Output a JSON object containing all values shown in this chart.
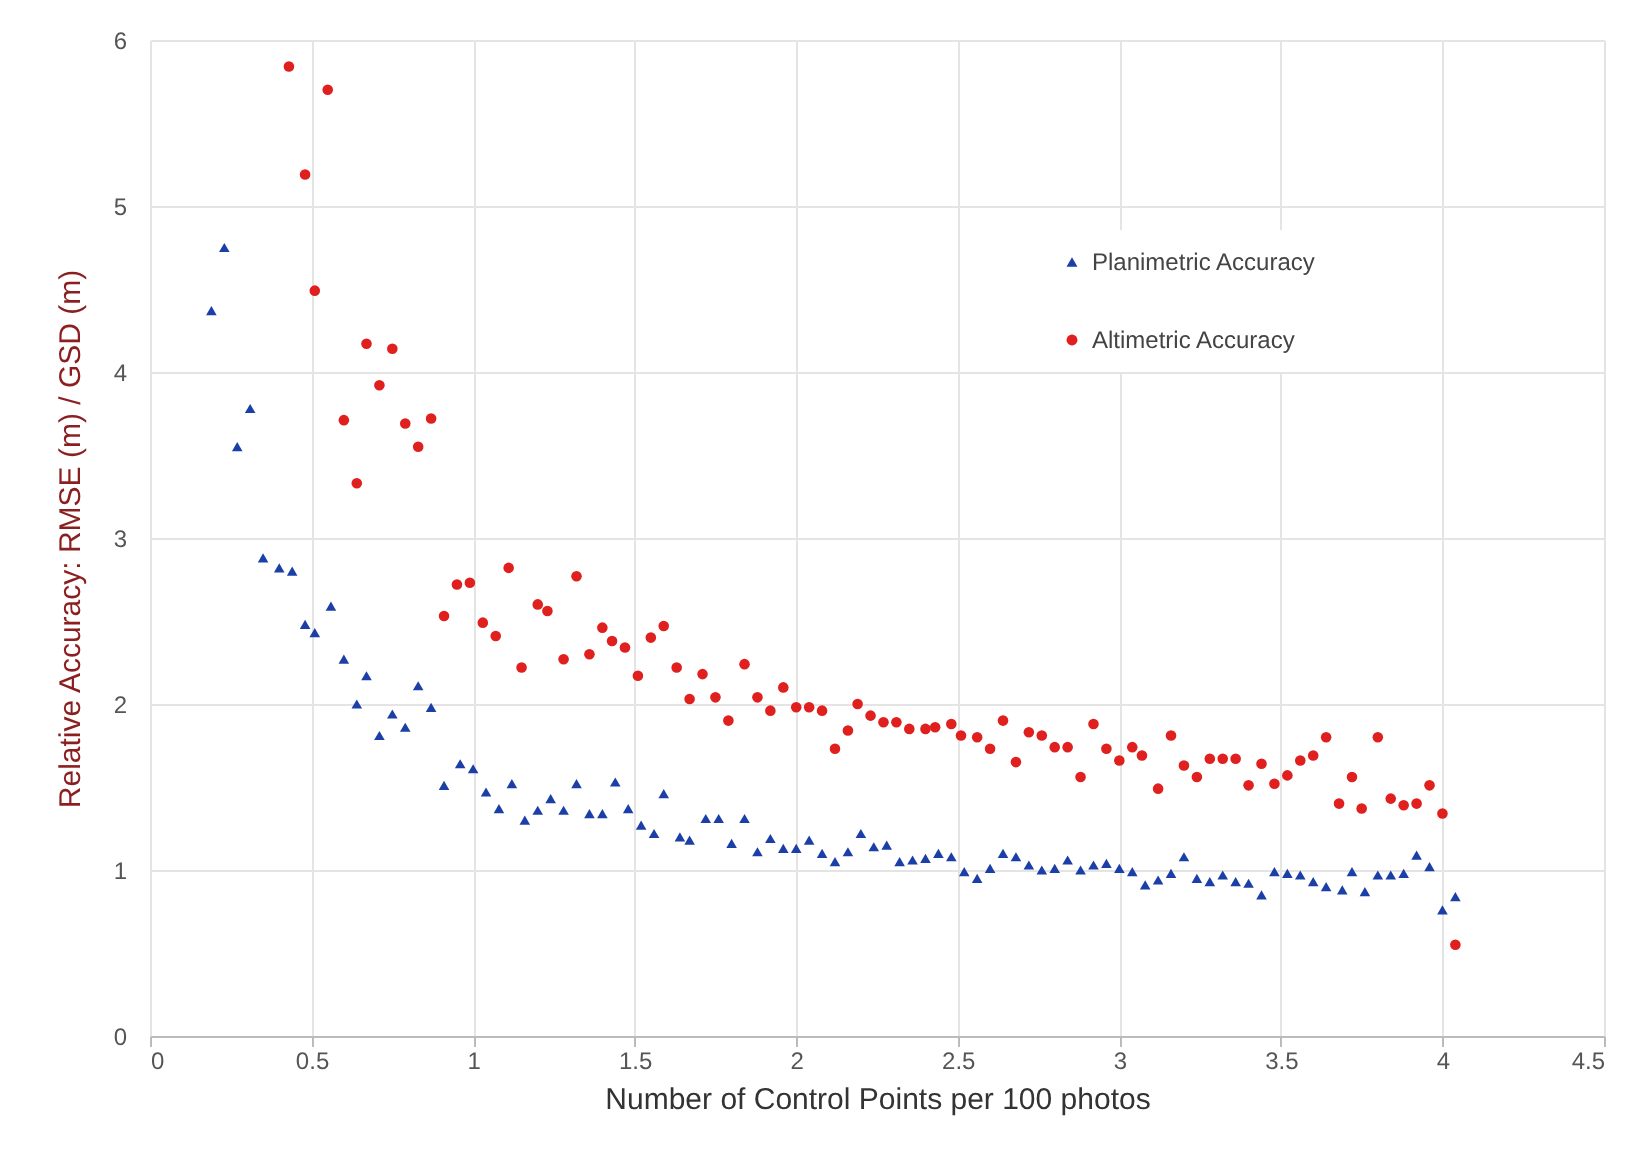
{
  "chart_data": {
    "type": "scatter",
    "xlabel": "Number of Control Points per 100 photos",
    "ylabel": "Relative Accuracy: RMSE (m) / GSD (m)",
    "xlim": [
      0,
      4.5
    ],
    "ylim": [
      0,
      6
    ],
    "xticks": [
      0,
      0.5,
      1,
      1.5,
      2,
      2.5,
      3,
      3.5,
      4,
      4.5
    ],
    "yticks": [
      0,
      1,
      2,
      3,
      4,
      5,
      6
    ],
    "grid": true,
    "legend": "top right",
    "series": [
      {
        "name": "Planimetric Accuracy",
        "color": "#1b3fa6",
        "marker": "triangle",
        "x": [
          0.19,
          0.23,
          0.27,
          0.31,
          0.35,
          0.4,
          0.44,
          0.48,
          0.51,
          0.56,
          0.6,
          0.64,
          0.67,
          0.71,
          0.75,
          0.79,
          0.83,
          0.87,
          0.91,
          0.96,
          1.0,
          1.04,
          1.08,
          1.12,
          1.16,
          1.2,
          1.24,
          1.28,
          1.32,
          1.36,
          1.4,
          1.44,
          1.48,
          1.52,
          1.56,
          1.59,
          1.64,
          1.67,
          1.72,
          1.76,
          1.8,
          1.84,
          1.88,
          1.92,
          1.96,
          2.0,
          2.04,
          2.08,
          2.12,
          2.16,
          2.2,
          2.24,
          2.28,
          2.32,
          2.36,
          2.4,
          2.44,
          2.48,
          2.52,
          2.56,
          2.6,
          2.64,
          2.68,
          2.72,
          2.76,
          2.8,
          2.84,
          2.88,
          2.92,
          2.96,
          3.0,
          3.04,
          3.08,
          3.12,
          3.16,
          3.2,
          3.24,
          3.28,
          3.32,
          3.36,
          3.4,
          3.44,
          3.48,
          3.52,
          3.56,
          3.6,
          3.64,
          3.69,
          3.72,
          3.76,
          3.8,
          3.84,
          3.88,
          3.92,
          3.96,
          4.0,
          4.04
        ],
        "values": [
          4.37,
          4.75,
          3.55,
          3.78,
          2.88,
          2.82,
          2.8,
          2.48,
          2.43,
          2.59,
          2.27,
          2.0,
          2.17,
          1.81,
          1.94,
          1.86,
          2.11,
          1.98,
          1.51,
          1.64,
          1.61,
          1.47,
          1.37,
          1.52,
          1.3,
          1.36,
          1.43,
          1.36,
          1.52,
          1.34,
          1.34,
          1.53,
          1.37,
          1.27,
          1.22,
          1.46,
          1.2,
          1.18,
          1.31,
          1.31,
          1.16,
          1.31,
          1.11,
          1.19,
          1.13,
          1.13,
          1.18,
          1.1,
          1.05,
          1.11,
          1.22,
          1.14,
          1.15,
          1.05,
          1.06,
          1.07,
          1.1,
          1.08,
          0.99,
          0.95,
          1.01,
          1.1,
          1.08,
          1.03,
          1.0,
          1.01,
          1.06,
          1.0,
          1.03,
          1.04,
          1.01,
          0.99,
          0.91,
          0.94,
          0.98,
          1.08,
          0.95,
          0.93,
          0.97,
          0.93,
          0.92,
          0.85,
          0.99,
          0.98,
          0.97,
          0.93,
          0.9,
          0.88,
          0.99,
          0.87,
          0.97,
          0.97,
          0.98,
          1.09,
          1.02,
          0.76,
          0.84
        ]
      },
      {
        "name": "Altimetric Accuracy",
        "color": "#e0201e",
        "marker": "circle",
        "x": [
          0.43,
          0.48,
          0.51,
          0.55,
          0.6,
          0.64,
          0.67,
          0.71,
          0.75,
          0.79,
          0.83,
          0.87,
          0.91,
          0.95,
          0.99,
          1.03,
          1.07,
          1.11,
          1.15,
          1.2,
          1.23,
          1.28,
          1.32,
          1.36,
          1.4,
          1.43,
          1.47,
          1.51,
          1.55,
          1.59,
          1.63,
          1.67,
          1.71,
          1.75,
          1.79,
          1.84,
          1.88,
          1.92,
          1.96,
          2.0,
          2.04,
          2.08,
          2.12,
          2.16,
          2.19,
          2.23,
          2.27,
          2.31,
          2.35,
          2.4,
          2.43,
          2.48,
          2.51,
          2.56,
          2.6,
          2.64,
          2.68,
          2.72,
          2.76,
          2.8,
          2.84,
          2.88,
          2.92,
          2.96,
          3.0,
          3.04,
          3.07,
          3.12,
          3.16,
          3.2,
          3.24,
          3.28,
          3.32,
          3.36,
          3.4,
          3.44,
          3.48,
          3.52,
          3.56,
          3.6,
          3.64,
          3.68,
          3.72,
          3.75,
          3.8,
          3.84,
          3.88,
          3.92,
          3.96,
          4.0,
          4.04
        ],
        "values": [
          5.84,
          5.19,
          4.49,
          5.7,
          3.71,
          3.33,
          4.17,
          3.92,
          4.14,
          3.69,
          3.55,
          3.72,
          2.53,
          2.72,
          2.73,
          2.49,
          2.41,
          2.82,
          2.22,
          2.6,
          2.56,
          2.27,
          2.77,
          2.3,
          2.46,
          2.38,
          2.34,
          2.17,
          2.4,
          2.47,
          2.22,
          2.03,
          2.18,
          2.04,
          1.9,
          2.24,
          2.04,
          1.96,
          2.1,
          1.98,
          1.98,
          1.96,
          1.73,
          1.84,
          2.0,
          1.93,
          1.89,
          1.89,
          1.85,
          1.85,
          1.86,
          1.88,
          1.81,
          1.8,
          1.73,
          1.9,
          1.65,
          1.83,
          1.81,
          1.74,
          1.74,
          1.56,
          1.88,
          1.73,
          1.66,
          1.74,
          1.69,
          1.49,
          1.81,
          1.63,
          1.56,
          1.67,
          1.67,
          1.67,
          1.51,
          1.64,
          1.52,
          1.57,
          1.66,
          1.69,
          1.8,
          1.4,
          1.56,
          1.37,
          1.8,
          1.43,
          1.39,
          1.4,
          1.51,
          1.34,
          0.55
        ]
      }
    ]
  }
}
